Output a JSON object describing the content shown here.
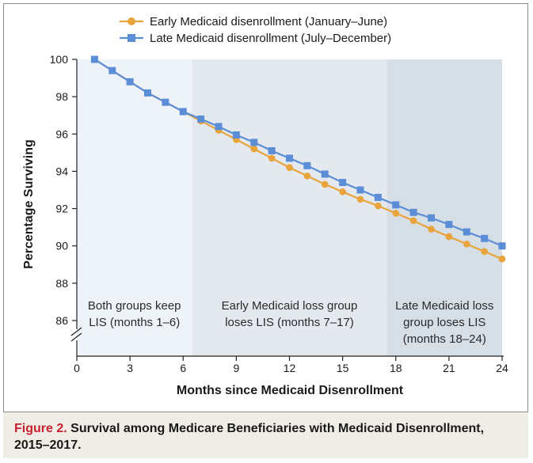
{
  "chart_data": {
    "type": "line",
    "xlabel": "Months since Medicaid Disenrollment",
    "ylabel": "Percentage Surviving",
    "xlim": [
      0,
      24
    ],
    "ylim": [
      85,
      100
    ],
    "axis_break": true,
    "xticks": [
      0,
      3,
      6,
      9,
      12,
      15,
      18,
      21,
      24
    ],
    "yticks": [
      86,
      88,
      90,
      92,
      94,
      96,
      98,
      100
    ],
    "legend_position": "top-center",
    "series": [
      {
        "name": "Early Medicaid disenrollment (January–June)",
        "color": "#e8a33a",
        "marker": "circle",
        "x": [
          1,
          2,
          3,
          4,
          5,
          6,
          7,
          8,
          9,
          10,
          11,
          12,
          13,
          14,
          15,
          16,
          17,
          18,
          19,
          20,
          21,
          22,
          23,
          24
        ],
        "y": [
          100.0,
          99.4,
          98.8,
          98.2,
          97.7,
          97.2,
          96.7,
          96.2,
          95.7,
          95.2,
          94.7,
          94.2,
          93.75,
          93.3,
          92.9,
          92.5,
          92.15,
          91.75,
          91.35,
          90.9,
          90.5,
          90.1,
          89.7,
          89.3
        ]
      },
      {
        "name": "Late Medicaid disenrollment (July–December)",
        "color": "#5b8ed6",
        "marker": "square",
        "x": [
          1,
          2,
          3,
          4,
          5,
          6,
          7,
          8,
          9,
          10,
          11,
          12,
          13,
          14,
          15,
          16,
          17,
          18,
          19,
          20,
          21,
          22,
          23,
          24
        ],
        "y": [
          100.0,
          99.4,
          98.8,
          98.2,
          97.7,
          97.2,
          96.8,
          96.4,
          95.95,
          95.55,
          95.1,
          94.7,
          94.3,
          93.85,
          93.4,
          93.0,
          92.6,
          92.2,
          91.8,
          91.5,
          91.15,
          90.75,
          90.4,
          90.0
        ]
      }
    ],
    "regions": [
      {
        "x_start": 0,
        "x_end": 6.5,
        "color": "#eef3f9",
        "label_lines": [
          "Both groups keep",
          "LIS (months 1–6)"
        ]
      },
      {
        "x_start": 6.5,
        "x_end": 17.5,
        "color": "#e4e9ef",
        "label_lines": [
          "Early Medicaid loss group",
          "loses LIS (months 7–17)"
        ]
      },
      {
        "x_start": 17.5,
        "x_end": 24,
        "color": "#d6dee6",
        "label_lines": [
          "Late Medicaid loss",
          "group loses LIS",
          "(months 18–24)"
        ]
      }
    ]
  },
  "caption": {
    "label": "Figure 2.",
    "title": "Survival among Medicare Beneficiaries with Medicaid Disenrollment, 2015–2017."
  }
}
